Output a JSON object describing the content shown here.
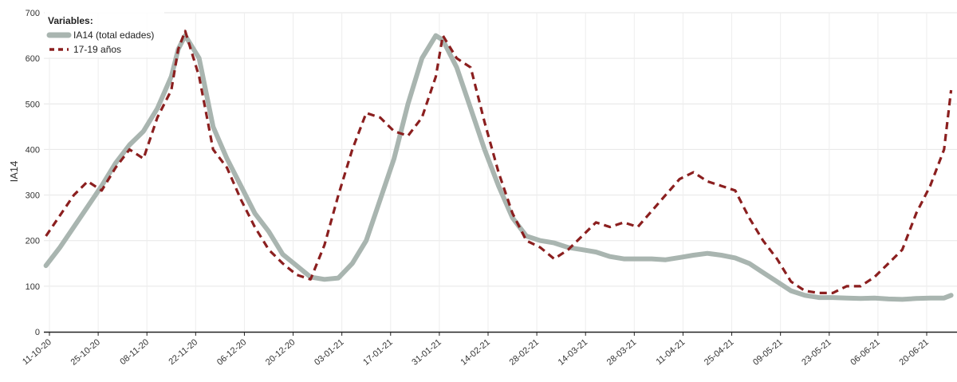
{
  "chart_data": {
    "type": "line",
    "title": "",
    "subtitle": "",
    "xlabel": "",
    "ylabel": "IA14",
    "ylim": [
      0,
      700
    ],
    "yticks": [
      0,
      100,
      200,
      300,
      400,
      500,
      600,
      700
    ],
    "grid": true,
    "legend": {
      "title": "Variables:",
      "placement": "top-left"
    },
    "x_tick_labels": [
      "11-10-20",
      "25-10-20",
      "08-11-20",
      "22-11-20",
      "06-12-20",
      "20-12-20",
      "03-01-21",
      "17-01-21",
      "31-01-21",
      "14-02-21",
      "28-02-21",
      "14-03-21",
      "28-03-21",
      "11-04-21",
      "25-04-21",
      "09-05-21",
      "23-05-21",
      "06-06-21",
      "20-06-21"
    ],
    "series": [
      {
        "name": "IA14 (total edades)",
        "color": "#a9b5b0",
        "style": "solid",
        "x": [
          "10-10-20",
          "14-10-20",
          "18-10-20",
          "22-10-20",
          "26-10-20",
          "30-10-20",
          "03-11-20",
          "07-11-20",
          "11-11-20",
          "15-11-20",
          "17-11-20",
          "19-11-20",
          "23-11-20",
          "27-11-20",
          "01-12-20",
          "05-12-20",
          "09-12-20",
          "13-12-20",
          "17-12-20",
          "21-12-20",
          "25-12-20",
          "29-12-20",
          "02-01-21",
          "06-01-21",
          "10-01-21",
          "14-01-21",
          "18-01-21",
          "22-01-21",
          "26-01-21",
          "30-01-21",
          "01-02-21",
          "05-02-21",
          "09-02-21",
          "13-02-21",
          "17-02-21",
          "21-02-21",
          "25-02-21",
          "01-03-21",
          "05-03-21",
          "09-03-21",
          "13-03-21",
          "17-03-21",
          "21-03-21",
          "25-03-21",
          "29-03-21",
          "02-04-21",
          "06-04-21",
          "10-04-21",
          "14-04-21",
          "18-04-21",
          "22-04-21",
          "26-04-21",
          "30-04-21",
          "04-05-21",
          "08-05-21",
          "12-05-21",
          "16-05-21",
          "20-05-21",
          "24-05-21",
          "28-05-21",
          "01-06-21",
          "05-06-21",
          "09-06-21",
          "13-06-21",
          "17-06-21",
          "21-06-21",
          "25-06-21",
          "27-06-21"
        ],
        "y": [
          145,
          185,
          230,
          275,
          320,
          370,
          410,
          440,
          490,
          560,
          620,
          650,
          600,
          450,
          380,
          320,
          260,
          220,
          170,
          145,
          120,
          115,
          118,
          150,
          200,
          290,
          380,
          500,
          600,
          650,
          640,
          580,
          490,
          400,
          320,
          250,
          210,
          200,
          195,
          185,
          180,
          175,
          165,
          160,
          160,
          160,
          158,
          163,
          168,
          172,
          168,
          162,
          150,
          130,
          110,
          90,
          80,
          75,
          75,
          74,
          73,
          74,
          72,
          71,
          73,
          74,
          74,
          80
        ]
      },
      {
        "name": "17-19 años",
        "color": "#8b1f1f",
        "style": "dashed",
        "x": [
          "10-10-20",
          "14-10-20",
          "18-10-20",
          "22-10-20",
          "26-10-20",
          "30-10-20",
          "03-11-20",
          "07-11-20",
          "11-11-20",
          "15-11-20",
          "17-11-20",
          "19-11-20",
          "23-11-20",
          "27-11-20",
          "01-12-20",
          "05-12-20",
          "09-12-20",
          "13-12-20",
          "17-12-20",
          "21-12-20",
          "25-12-20",
          "29-12-20",
          "02-01-21",
          "06-01-21",
          "10-01-21",
          "14-01-21",
          "18-01-21",
          "22-01-21",
          "26-01-21",
          "30-01-21",
          "01-02-21",
          "05-02-21",
          "09-02-21",
          "13-02-21",
          "17-02-21",
          "21-02-21",
          "25-02-21",
          "01-03-21",
          "05-03-21",
          "09-03-21",
          "13-03-21",
          "17-03-21",
          "21-03-21",
          "25-03-21",
          "29-03-21",
          "02-04-21",
          "06-04-21",
          "10-04-21",
          "14-04-21",
          "18-04-21",
          "22-04-21",
          "26-04-21",
          "30-04-21",
          "04-05-21",
          "08-05-21",
          "12-05-21",
          "16-05-21",
          "20-05-21",
          "24-05-21",
          "28-05-21",
          "01-06-21",
          "05-06-21",
          "09-06-21",
          "13-06-21",
          "17-06-21",
          "21-06-21",
          "25-06-21",
          "27-06-21"
        ],
        "y": [
          210,
          255,
          300,
          330,
          310,
          360,
          400,
          380,
          470,
          530,
          620,
          660,
          560,
          400,
          360,
          290,
          230,
          180,
          150,
          125,
          115,
          190,
          300,
          400,
          480,
          470,
          440,
          430,
          470,
          560,
          650,
          600,
          580,
          460,
          350,
          260,
          200,
          185,
          160,
          180,
          210,
          240,
          230,
          240,
          230,
          265,
          300,
          335,
          350,
          330,
          320,
          310,
          250,
          200,
          160,
          110,
          90,
          85,
          85,
          100,
          100,
          120,
          150,
          180,
          260,
          320,
          400,
          530
        ]
      }
    ]
  }
}
